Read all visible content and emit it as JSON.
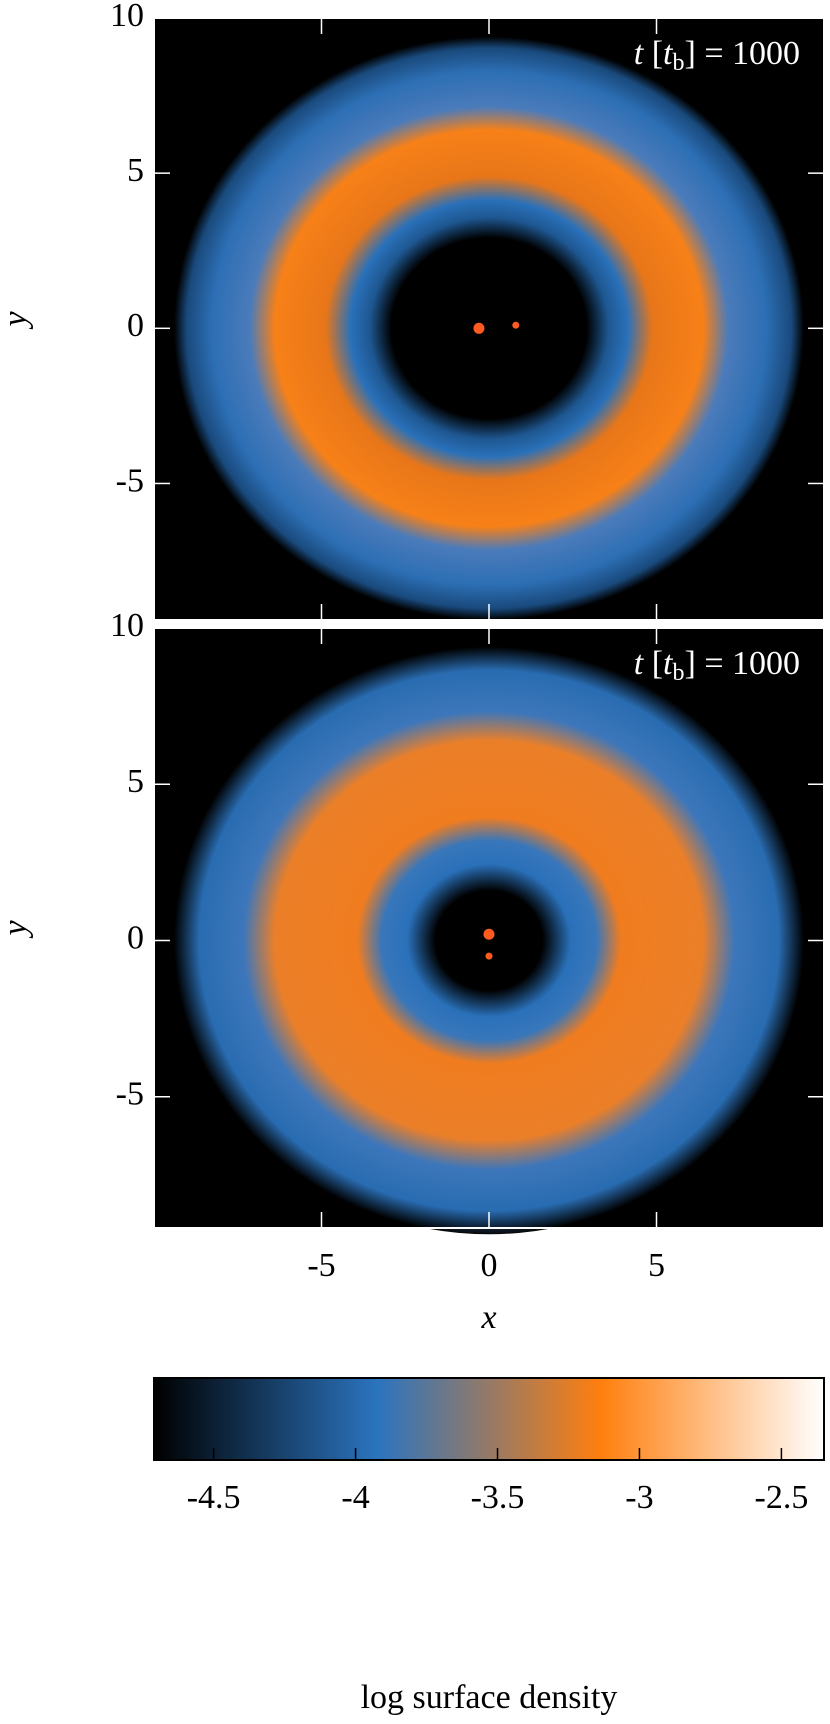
{
  "chart_data": [
    {
      "type": "image",
      "xlim": [
        -10,
        10
      ],
      "ylim": [
        -9.4,
        10
      ],
      "yticks": [
        -5,
        0,
        5,
        10
      ],
      "ylabel": "y",
      "annotation": [
        "t",
        " [",
        "t",
        "b",
        "] = 1000"
      ],
      "x": [
        -0.3,
        0.8
      ],
      "y": [
        0,
        0.1
      ],
      "color": "#ff5a1f",
      "hole": "wide"
    },
    {
      "type": "image",
      "xlim": [
        -10,
        10
      ],
      "ylim": [
        -9.2,
        10
      ],
      "xticks": [
        -5,
        0,
        5
      ],
      "yticks": [
        -5,
        0,
        5,
        10
      ],
      "xlabel": "x",
      "ylabel": "y",
      "annotation": [
        "t",
        " [",
        "t",
        "b",
        "] = 1000"
      ],
      "x": [
        0,
        0
      ],
      "y": [
        0.2,
        -0.5
      ],
      "color": "#ff5a1f",
      "hole": "narrow"
    },
    {
      "type": "colorbar",
      "clim": [
        -4.71,
        -2.35
      ],
      "ticks": [
        -4.5,
        -4,
        -3.5,
        -3,
        -2.5
      ],
      "label": "log surface density",
      "colors": [
        "#000000",
        "#2b74bf",
        "#ff7f0e",
        "#ffffff"
      ]
    }
  ]
}
